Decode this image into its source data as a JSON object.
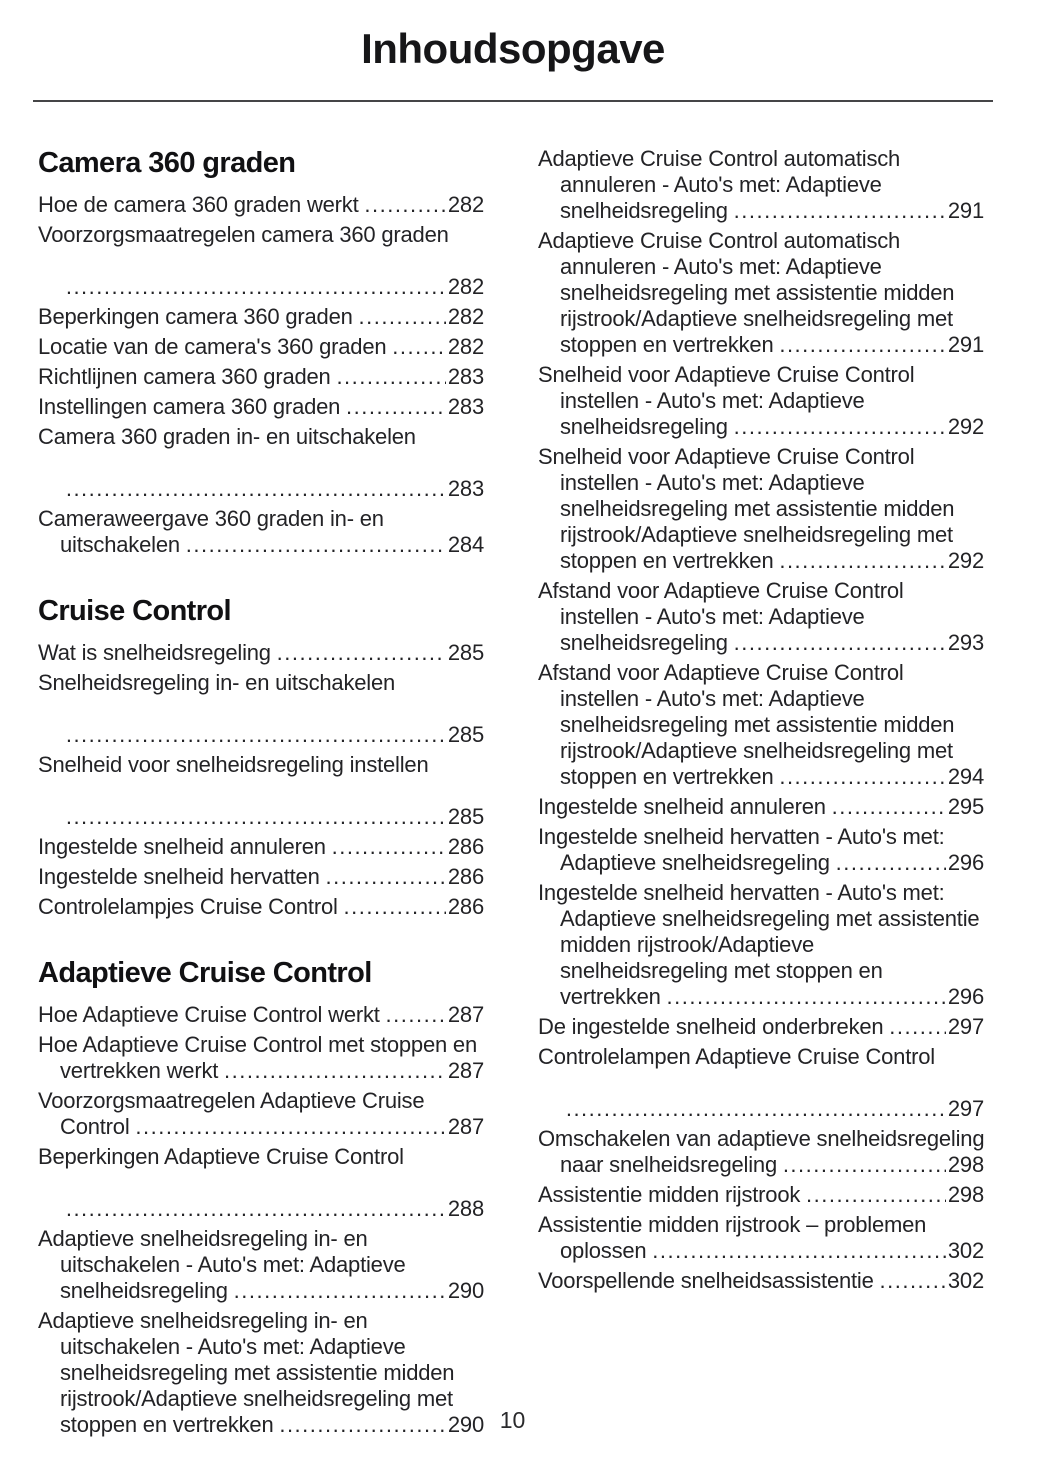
{
  "toc": {
    "title": "Inhoudsopgave",
    "page_number": "10",
    "columns": [
      {
        "sections": [
          {
            "heading": "Camera 360 graden",
            "entries": [
              {
                "text": "Hoe de camera 360 graden werkt",
                "page": "282"
              },
              {
                "text": "Voorzorgsmaatregelen camera 360 graden",
                "page": "282"
              },
              {
                "text": "Beperkingen camera 360 graden",
                "page": "282"
              },
              {
                "text": "Locatie van de camera's 360 graden",
                "page": "282"
              },
              {
                "text": "Richtlijnen camera 360 graden",
                "page": "283"
              },
              {
                "text": "Instellingen camera 360 graden",
                "page": "283"
              },
              {
                "text": "Camera 360 graden in- en uitschakelen",
                "page": "283"
              },
              {
                "text": "Cameraweergave 360 graden in- en uitschakelen",
                "page": "284"
              }
            ]
          },
          {
            "heading": "Cruise Control",
            "entries": [
              {
                "text": "Wat is snelheidsregeling",
                "page": "285"
              },
              {
                "text": "Snelheidsregeling in- en uitschakelen",
                "page": "285"
              },
              {
                "text": "Snelheid voor snelheidsregeling instellen",
                "page": "285"
              },
              {
                "text": "Ingestelde snelheid annuleren",
                "page": "286"
              },
              {
                "text": "Ingestelde snelheid hervatten",
                "page": "286"
              },
              {
                "text": "Controlelampjes Cruise Control",
                "page": "286"
              }
            ]
          },
          {
            "heading": "Adaptieve Cruise Control",
            "entries": [
              {
                "text": "Hoe Adaptieve Cruise Control werkt",
                "page": "287"
              },
              {
                "text": "Hoe Adaptieve Cruise Control met stoppen en vertrekken werkt",
                "page": "287"
              },
              {
                "text": "Voorzorgsmaatregelen Adaptieve Cruise Control",
                "page": "287"
              },
              {
                "text": "Beperkingen Adaptieve Cruise Control",
                "page": "288"
              },
              {
                "text": "Adaptieve snelheidsregeling in- en uitschakelen - Auto's met: Adaptieve snelheidsregeling",
                "page": "290"
              },
              {
                "text": "Adaptieve snelheidsregeling in- en uitschakelen - Auto's met: Adaptieve snelheidsregeling met assistentie midden rijstrook/Adaptieve snelheidsregeling met stoppen en vertrekken",
                "page": "290"
              }
            ]
          }
        ]
      },
      {
        "sections": [
          {
            "heading": null,
            "entries": [
              {
                "text": "Adaptieve Cruise Control automatisch annuleren - Auto's met: Adaptieve snelheidsregeling",
                "page": "291"
              },
              {
                "text": "Adaptieve Cruise Control automatisch annuleren - Auto's met: Adaptieve snelheidsregeling met assistentie midden rijstrook/Adaptieve snelheidsregeling met stoppen en vertrekken",
                "page": "291"
              },
              {
                "text": "Snelheid voor Adaptieve Cruise Control instellen - Auto's met: Adaptieve snelheidsregeling",
                "page": "292"
              },
              {
                "text": "Snelheid voor Adaptieve Cruise Control instellen - Auto's met: Adaptieve snelheidsregeling met assistentie midden rijstrook/Adaptieve snelheidsregeling met stoppen en vertrekken",
                "page": "292"
              },
              {
                "text": "Afstand voor Adaptieve Cruise Control instellen - Auto's met: Adaptieve snelheidsregeling",
                "page": "293"
              },
              {
                "text": "Afstand voor Adaptieve Cruise Control instellen - Auto's met: Adaptieve snelheidsregeling met assistentie midden rijstrook/Adaptieve snelheidsregeling met stoppen en vertrekken",
                "page": "294"
              },
              {
                "text": "Ingestelde snelheid annuleren",
                "page": "295"
              },
              {
                "text": "Ingestelde snelheid hervatten - Auto's met: Adaptieve snelheidsregeling",
                "page": "296"
              },
              {
                "text": "Ingestelde snelheid hervatten - Auto's met: Adaptieve snelheidsregeling met assistentie midden rijstrook/Adaptieve snelheidsregeling met stoppen en vertrekken",
                "page": "296"
              },
              {
                "text": "De ingestelde snelheid onderbreken",
                "page": "297"
              },
              {
                "text": "Controlelampen Adaptieve Cruise Control",
                "page": "297"
              },
              {
                "text": "Omschakelen van adaptieve snelheidsregeling naar snelheidsregeling",
                "page": "298"
              },
              {
                "text": "Assistentie midden rijstrook",
                "page": "298"
              },
              {
                "text": "Assistentie midden rijstrook – problemen oplossen",
                "page": "302"
              },
              {
                "text": "Voorspellende snelheidsassistentie",
                "page": "302"
              }
            ]
          }
        ]
      }
    ]
  }
}
